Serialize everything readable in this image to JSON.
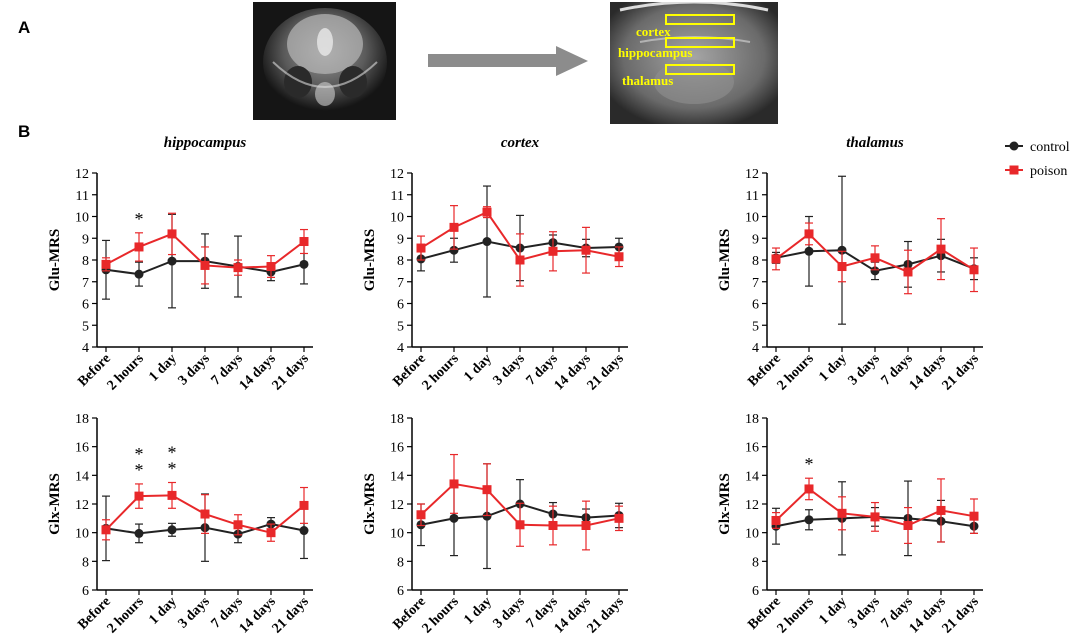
{
  "panels": {
    "a": "A",
    "b": "B"
  },
  "roi_labels": [
    "cortex",
    "hippocampus",
    "thalamus"
  ],
  "colors": {
    "control": "#222222",
    "poison": "#e8282a",
    "arrow": "#8c8c8c"
  },
  "legend": [
    {
      "key": "control",
      "label": "control"
    },
    {
      "key": "poison",
      "label": "poison"
    }
  ],
  "chart_data": [
    {
      "type": "line",
      "region": "hippocampus",
      "title": "hippocampus",
      "ylabel": "Glu-MRS",
      "ylim": [
        4,
        12
      ],
      "yticks": [
        4,
        5,
        6,
        7,
        8,
        9,
        10,
        11,
        12
      ],
      "categories": [
        "Before",
        "2 hours",
        "1 day",
        "3 days",
        "7 days",
        "14 days",
        "21 days"
      ],
      "series": [
        {
          "name": "control",
          "values": [
            7.55,
            7.35,
            7.95,
            7.95,
            7.7,
            7.45,
            7.8
          ],
          "err": [
            1.35,
            0.55,
            2.15,
            1.25,
            1.4,
            0.4,
            0.9
          ]
        },
        {
          "name": "poison",
          "values": [
            7.8,
            8.6,
            9.2,
            7.75,
            7.65,
            7.7,
            8.85
          ],
          "err": [
            0.3,
            0.65,
            0.95,
            0.85,
            0.35,
            0.5,
            0.55
          ]
        }
      ],
      "significance": [
        {
          "category": "2 hours",
          "marks": 1
        }
      ]
    },
    {
      "type": "line",
      "region": "cortex",
      "title": "cortex",
      "ylabel": "Glu-MRS",
      "ylim": [
        4,
        12
      ],
      "yticks": [
        4,
        5,
        6,
        7,
        8,
        9,
        10,
        11,
        12
      ],
      "categories": [
        "Before",
        "2 hours",
        "1 day",
        "3 days",
        "7 days",
        "14 days",
        "21 days"
      ],
      "series": [
        {
          "name": "control",
          "values": [
            8.05,
            8.45,
            8.85,
            8.55,
            8.8,
            8.55,
            8.6
          ],
          "err": [
            0.55,
            0.55,
            2.55,
            1.5,
            0.35,
            0.4,
            0.4
          ]
        },
        {
          "name": "poison",
          "values": [
            8.55,
            9.5,
            10.2,
            8.0,
            8.4,
            8.45,
            8.15
          ],
          "err": [
            0.55,
            1.0,
            0.25,
            1.2,
            0.9,
            1.05,
            0.45
          ]
        }
      ],
      "significance": []
    },
    {
      "type": "line",
      "region": "thalamus",
      "title": "thalamus",
      "ylabel": "Glu-MRS",
      "ylim": [
        4,
        12
      ],
      "yticks": [
        4,
        5,
        6,
        7,
        8,
        9,
        10,
        11,
        12
      ],
      "categories": [
        "Before",
        "2 hours",
        "1 day",
        "3 days",
        "7 days",
        "14 days",
        "21 days"
      ],
      "series": [
        {
          "name": "control",
          "values": [
            8.1,
            8.4,
            8.45,
            7.5,
            7.8,
            8.2,
            7.6
          ],
          "err": [
            0.25,
            1.6,
            3.4,
            0.4,
            1.05,
            0.75,
            0.5
          ]
        },
        {
          "name": "poison",
          "values": [
            8.05,
            9.2,
            7.7,
            8.1,
            7.45,
            8.5,
            7.55
          ],
          "err": [
            0.5,
            0.5,
            0.7,
            0.55,
            1.0,
            1.4,
            1.0
          ]
        }
      ],
      "significance": []
    },
    {
      "type": "line",
      "region": "hippocampus",
      "title": "",
      "ylabel": "Glx-MRS",
      "ylim": [
        6,
        18
      ],
      "yticks": [
        6,
        8,
        10,
        12,
        14,
        16,
        18
      ],
      "categories": [
        "Before",
        "2 hours",
        "1 day",
        "3 days",
        "7 days",
        "14 days",
        "21 days"
      ],
      "series": [
        {
          "name": "control",
          "values": [
            10.3,
            9.95,
            10.2,
            10.35,
            9.9,
            10.6,
            10.15
          ],
          "err": [
            2.25,
            0.65,
            0.45,
            2.35,
            0.6,
            0.45,
            1.95
          ]
        },
        {
          "name": "poison",
          "values": [
            10.2,
            12.55,
            12.6,
            11.3,
            10.55,
            10.0,
            11.9
          ],
          "err": [
            0.7,
            0.85,
            0.9,
            1.35,
            0.7,
            0.6,
            1.25
          ]
        }
      ],
      "significance": [
        {
          "category": "2 hours",
          "marks": 2
        },
        {
          "category": "1 day",
          "marks": 2
        }
      ]
    },
    {
      "type": "line",
      "region": "cortex",
      "title": "",
      "ylabel": "Glx-MRS",
      "ylim": [
        6,
        18
      ],
      "yticks": [
        6,
        8,
        10,
        12,
        14,
        16,
        18
      ],
      "categories": [
        "Before",
        "2 hours",
        "1 day",
        "3 days",
        "7 days",
        "14 days",
        "21 days"
      ],
      "series": [
        {
          "name": "control",
          "values": [
            10.55,
            11.0,
            11.15,
            12.0,
            11.3,
            11.05,
            11.2
          ],
          "err": [
            1.45,
            2.6,
            3.65,
            1.7,
            0.8,
            0.6,
            0.85
          ]
        },
        {
          "name": "poison",
          "values": [
            11.25,
            13.4,
            13.0,
            10.55,
            10.5,
            10.5,
            11.0
          ],
          "err": [
            0.75,
            2.05,
            1.8,
            1.5,
            1.35,
            1.7,
            0.85
          ]
        }
      ],
      "significance": []
    },
    {
      "type": "line",
      "region": "thalamus",
      "title": "",
      "ylabel": "Glx-MRS",
      "ylim": [
        6,
        18
      ],
      "yticks": [
        6,
        8,
        10,
        12,
        14,
        16,
        18
      ],
      "categories": [
        "Before",
        "2 hours",
        "1 day",
        "3 days",
        "7 days",
        "14 days",
        "21 days"
      ],
      "series": [
        {
          "name": "control",
          "values": [
            10.45,
            10.9,
            11.0,
            11.1,
            11.0,
            10.8,
            10.45
          ],
          "err": [
            1.25,
            0.7,
            2.55,
            0.65,
            2.6,
            1.45,
            0.5
          ]
        },
        {
          "name": "poison",
          "values": [
            10.85,
            13.05,
            11.35,
            11.1,
            10.5,
            11.55,
            11.15
          ],
          "err": [
            0.55,
            0.75,
            1.15,
            1.0,
            1.25,
            2.2,
            1.2
          ]
        }
      ],
      "significance": [
        {
          "category": "2 hours",
          "marks": 1
        }
      ]
    }
  ]
}
